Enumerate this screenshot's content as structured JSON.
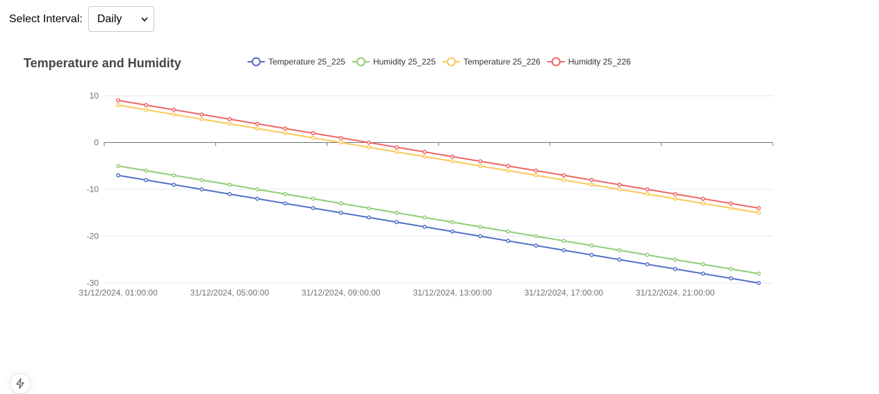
{
  "controls": {
    "interval_label": "Select Interval:",
    "interval_value": "Daily"
  },
  "chart_data": {
    "type": "line",
    "title": "Temperature and Humidity",
    "xlabel": "",
    "ylabel": "",
    "ylim": [
      -30,
      10
    ],
    "yticks": [
      10,
      0,
      -10,
      -20,
      -30
    ],
    "x": [
      "31/12/2024, 01:00:00",
      "31/12/2024, 02:00:00",
      "31/12/2024, 03:00:00",
      "31/12/2024, 04:00:00",
      "31/12/2024, 05:00:00",
      "31/12/2024, 06:00:00",
      "31/12/2024, 07:00:00",
      "31/12/2024, 08:00:00",
      "31/12/2024, 09:00:00",
      "31/12/2024, 10:00:00",
      "31/12/2024, 11:00:00",
      "31/12/2024, 12:00:00",
      "31/12/2024, 13:00:00",
      "31/12/2024, 14:00:00",
      "31/12/2024, 15:00:00",
      "31/12/2024, 16:00:00",
      "31/12/2024, 17:00:00",
      "31/12/2024, 18:00:00",
      "31/12/2024, 19:00:00",
      "31/12/2024, 20:00:00",
      "31/12/2024, 21:00:00",
      "31/12/2024, 22:00:00",
      "31/12/2024, 23:00:00",
      "01/01/2025, 00:00:00"
    ],
    "xtick_labels": [
      "31/12/2024, 01:00:00",
      "31/12/2024, 05:00:00",
      "31/12/2024, 09:00:00",
      "31/12/2024, 13:00:00",
      "31/12/2024, 17:00:00",
      "31/12/2024, 21:00:00"
    ],
    "grid": true,
    "legend": "top",
    "series": [
      {
        "name": "Temperature 25_225",
        "color": "#5470c6",
        "values": [
          -7,
          -8,
          -9,
          -10,
          -11,
          -12,
          -13,
          -14,
          -15,
          -16,
          -17,
          -18,
          -19,
          -20,
          -21,
          -22,
          -23,
          -24,
          -25,
          -26,
          -27,
          -28,
          -29,
          -30
        ]
      },
      {
        "name": "Humidity 25_225",
        "color": "#91cc75",
        "values": [
          -5,
          -6,
          -7,
          -8,
          -9,
          -10,
          -11,
          -12,
          -13,
          -14,
          -15,
          -16,
          -17,
          -18,
          -19,
          -20,
          -21,
          -22,
          -23,
          -24,
          -25,
          -26,
          -27,
          -28
        ]
      },
      {
        "name": "Temperature 25_226",
        "color": "#fac858",
        "values": [
          8,
          7,
          6,
          5,
          4,
          3,
          2,
          1,
          0,
          -1,
          -2,
          -3,
          -4,
          -5,
          -6,
          -7,
          -8,
          -9,
          -10,
          -11,
          -12,
          -13,
          -14,
          -15
        ]
      },
      {
        "name": "Humidity 25_226",
        "color": "#ee6666",
        "values": [
          9,
          8,
          7,
          6,
          5,
          4,
          3,
          2,
          1,
          0,
          -1,
          -2,
          -3,
          -4,
          -5,
          -6,
          -7,
          -8,
          -9,
          -10,
          -11,
          -12,
          -13,
          -14
        ]
      }
    ]
  },
  "icons": {
    "fab": "lightning-icon",
    "select_arrow": "chevron-down-icon"
  }
}
